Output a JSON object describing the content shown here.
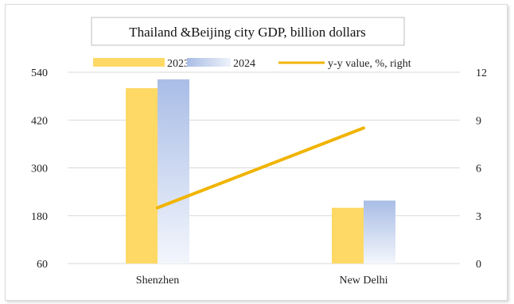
{
  "chart_data": {
    "type": "bar",
    "title": "Thailand &Beijing city GDP, billion dollars",
    "categories": [
      "Shenzhen",
      "New Delhi"
    ],
    "series": [
      {
        "name": "2023",
        "kind": "bar",
        "axis": "left",
        "values": [
          500,
          200
        ],
        "color": "#ffd966"
      },
      {
        "name": "2024",
        "kind": "bar",
        "axis": "left",
        "values": [
          522,
          218
        ],
        "color": "#b4c7e7"
      },
      {
        "name": "y-y value, %, right",
        "kind": "line",
        "axis": "right",
        "values": [
          3.5,
          8.5
        ],
        "color": "#f0b400"
      }
    ],
    "y_left": {
      "min": 60,
      "max": 540,
      "ticks": [
        "60",
        "180",
        "300",
        "420",
        "540"
      ]
    },
    "y_right": {
      "min": 0,
      "max": 12,
      "ticks": [
        "0",
        "3",
        "6",
        "9",
        "12"
      ]
    },
    "grid": true,
    "legend_position": "top"
  }
}
